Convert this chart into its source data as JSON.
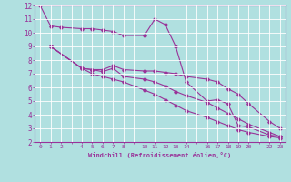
{
  "xlabel": "Windchill (Refroidissement éolien,°C)",
  "ylabel": "",
  "background_color": "#b0e0e0",
  "line_color": "#993399",
  "grid_color": "#c8ecec",
  "xlim": [
    -0.5,
    23.5
  ],
  "ylim": [
    2,
    12
  ],
  "xtick_labels": [
    "0",
    "1",
    "2",
    "",
    "4",
    "5",
    "6",
    "7",
    "8",
    "",
    "10",
    "11",
    "12",
    "13",
    "14",
    "",
    "16",
    "17",
    "18",
    "19",
    "20",
    "",
    "22",
    "23"
  ],
  "xtick_positions": [
    0,
    1,
    2,
    3,
    4,
    5,
    6,
    7,
    8,
    9,
    10,
    11,
    12,
    13,
    14,
    15,
    16,
    17,
    18,
    19,
    20,
    21,
    22,
    23
  ],
  "yticks": [
    2,
    3,
    4,
    5,
    6,
    7,
    8,
    9,
    10,
    11,
    12
  ],
  "line1_x": [
    0,
    1,
    2,
    4,
    5,
    6,
    7,
    8,
    10,
    11,
    12,
    13,
    14,
    16,
    17,
    18,
    19,
    20,
    22,
    23
  ],
  "line1_y": [
    12.0,
    10.5,
    10.4,
    10.3,
    10.3,
    10.2,
    10.1,
    9.8,
    9.8,
    11.0,
    10.6,
    9.0,
    6.4,
    5.0,
    5.1,
    4.8,
    3.2,
    3.1,
    2.5,
    2.4
  ],
  "line2_x": [
    1,
    4,
    5,
    6,
    7,
    8,
    10,
    11,
    12,
    13,
    14,
    16,
    17,
    18,
    19,
    20,
    22,
    23
  ],
  "line2_y": [
    9.0,
    7.4,
    7.3,
    7.3,
    7.6,
    7.3,
    7.2,
    7.2,
    7.1,
    7.0,
    6.8,
    6.6,
    6.4,
    5.9,
    5.5,
    4.8,
    3.5,
    3.0
  ],
  "line3_x": [
    1,
    4,
    5,
    6,
    7,
    8,
    10,
    11,
    12,
    13,
    14,
    16,
    17,
    18,
    19,
    20,
    22,
    23
  ],
  "line3_y": [
    9.0,
    7.4,
    7.3,
    7.15,
    7.4,
    6.8,
    6.6,
    6.4,
    6.1,
    5.7,
    5.4,
    4.9,
    4.5,
    4.1,
    3.7,
    3.3,
    2.7,
    2.4
  ],
  "line4_x": [
    1,
    4,
    5,
    6,
    7,
    8,
    10,
    11,
    12,
    13,
    14,
    16,
    17,
    18,
    19,
    20,
    22,
    23
  ],
  "line4_y": [
    9.0,
    7.4,
    7.0,
    6.8,
    6.6,
    6.4,
    5.8,
    5.5,
    5.1,
    4.7,
    4.3,
    3.8,
    3.5,
    3.2,
    2.9,
    2.7,
    2.4,
    2.3
  ]
}
